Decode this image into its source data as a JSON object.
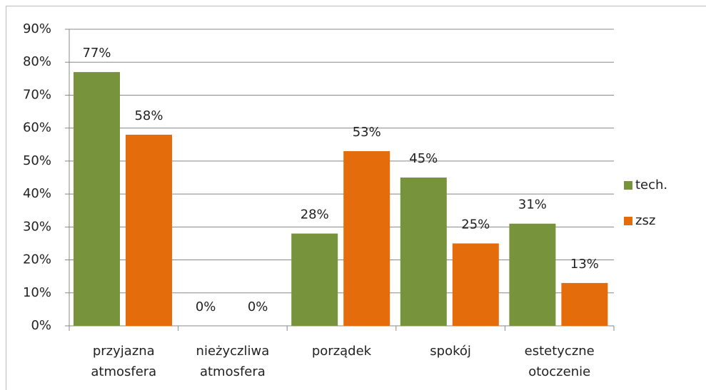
{
  "chart_data": {
    "type": "bar",
    "categories": [
      "przyjazna atmosfera",
      "nieżyczliwa atmosfera",
      "porządek",
      "spokój",
      "estetyczne otoczenie"
    ],
    "series": [
      {
        "name": "tech.",
        "color": "#77933c",
        "values": [
          77,
          0,
          28,
          45,
          31
        ],
        "value_labels": [
          "77%",
          "0%",
          "28%",
          "45%",
          "31%"
        ]
      },
      {
        "name": "zsz",
        "color": "#e46c0a",
        "values": [
          58,
          0,
          53,
          25,
          13
        ],
        "value_labels": [
          "58%",
          "0%",
          "53%",
          "25%",
          "13%"
        ]
      }
    ],
    "ylim": [
      0,
      90
    ],
    "yticks": [
      {
        "value": 0,
        "label": "0%"
      },
      {
        "value": 10,
        "label": "10%"
      },
      {
        "value": 20,
        "label": "20%"
      },
      {
        "value": 30,
        "label": "30%"
      },
      {
        "value": 40,
        "label": "40%"
      },
      {
        "value": 50,
        "label": "50%"
      },
      {
        "value": 60,
        "label": "60%"
      },
      {
        "value": 70,
        "label": "70%"
      },
      {
        "value": 80,
        "label": "80%"
      },
      {
        "value": 90,
        "label": "90%"
      }
    ],
    "grid": true,
    "legend": "right"
  }
}
